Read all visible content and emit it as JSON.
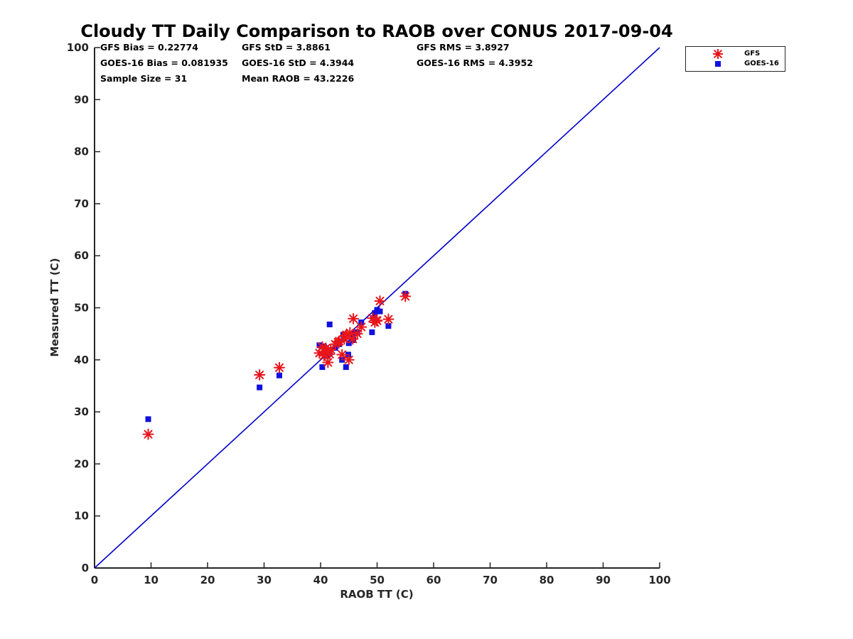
{
  "chart_data": {
    "type": "scatter",
    "title": "Cloudy TT Daily Comparison to RAOB over CONUS 2017-09-04",
    "xlabel": "RAOB TT (C)",
    "ylabel": "Measured TT (C)",
    "xlim": [
      0,
      100
    ],
    "ylim": [
      0,
      100
    ],
    "xticks": [
      0,
      10,
      20,
      30,
      40,
      50,
      60,
      70,
      80,
      90,
      100
    ],
    "yticks": [
      0,
      10,
      20,
      30,
      40,
      50,
      60,
      70,
      80,
      90,
      100
    ],
    "grid": false,
    "legend_position": "top-right-outside",
    "reference_line": {
      "x": [
        0,
        100
      ],
      "y": [
        0,
        100
      ],
      "color": "#0000cc"
    },
    "stats": [
      "GFS Bias = 0.22774",
      "GOES-16 Bias = 0.081935",
      "Sample Size = 31",
      "GFS StD = 3.8861",
      "GOES-16 StD = 4.3944",
      "Mean RAOB = 43.2226",
      "GFS RMS = 3.8927",
      "GOES-16 RMS = 4.3952"
    ],
    "series": [
      {
        "name": "GFS",
        "marker": "asterisk",
        "color": "#e8151b",
        "x": [
          9.5,
          29.2,
          32.7,
          39.8,
          40.3,
          40.6,
          41.0,
          41.3,
          41.8,
          42.6,
          43.3,
          43.8,
          44.2,
          44.6,
          45.0,
          45.2,
          45.7,
          46.5,
          47.2,
          49.2,
          49.6,
          50.0,
          50.5,
          52.0,
          55.0,
          40.9,
          44.4,
          45.8,
          43.1,
          49.9,
          41.6
        ],
        "y": [
          25.7,
          37.1,
          38.5,
          41.3,
          42.5,
          40.8,
          41.6,
          39.5,
          42.0,
          43.0,
          43.6,
          41.0,
          44.0,
          44.8,
          40.0,
          45.2,
          44.0,
          45.0,
          46.3,
          48.0,
          47.2,
          47.5,
          51.3,
          47.8,
          52.2,
          42.2,
          44.6,
          47.9,
          43.4,
          47.6,
          41.1
        ]
      },
      {
        "name": "GOES-16",
        "marker": "square",
        "color": "#1010e0",
        "x": [
          9.5,
          29.2,
          32.7,
          39.8,
          40.3,
          40.3,
          40.6,
          41.0,
          41.3,
          41.6,
          41.6,
          42.6,
          43.3,
          43.8,
          44.0,
          44.2,
          44.5,
          44.9,
          45.0,
          45.5,
          45.8,
          46.0,
          46.5,
          47.2,
          49.1,
          49.3,
          49.6,
          50.0,
          50.5,
          52.0,
          55.0
        ],
        "y": [
          28.6,
          34.7,
          37.0,
          42.8,
          42.6,
          38.6,
          42.5,
          40.8,
          41.0,
          41.2,
          46.8,
          42.3,
          43.0,
          40.0,
          44.8,
          44.9,
          38.6,
          41.0,
          43.2,
          44.2,
          43.8,
          45.3,
          45.2,
          47.2,
          45.3,
          48.0,
          49.0,
          49.6,
          49.3,
          46.5,
          52.7
        ]
      }
    ]
  }
}
